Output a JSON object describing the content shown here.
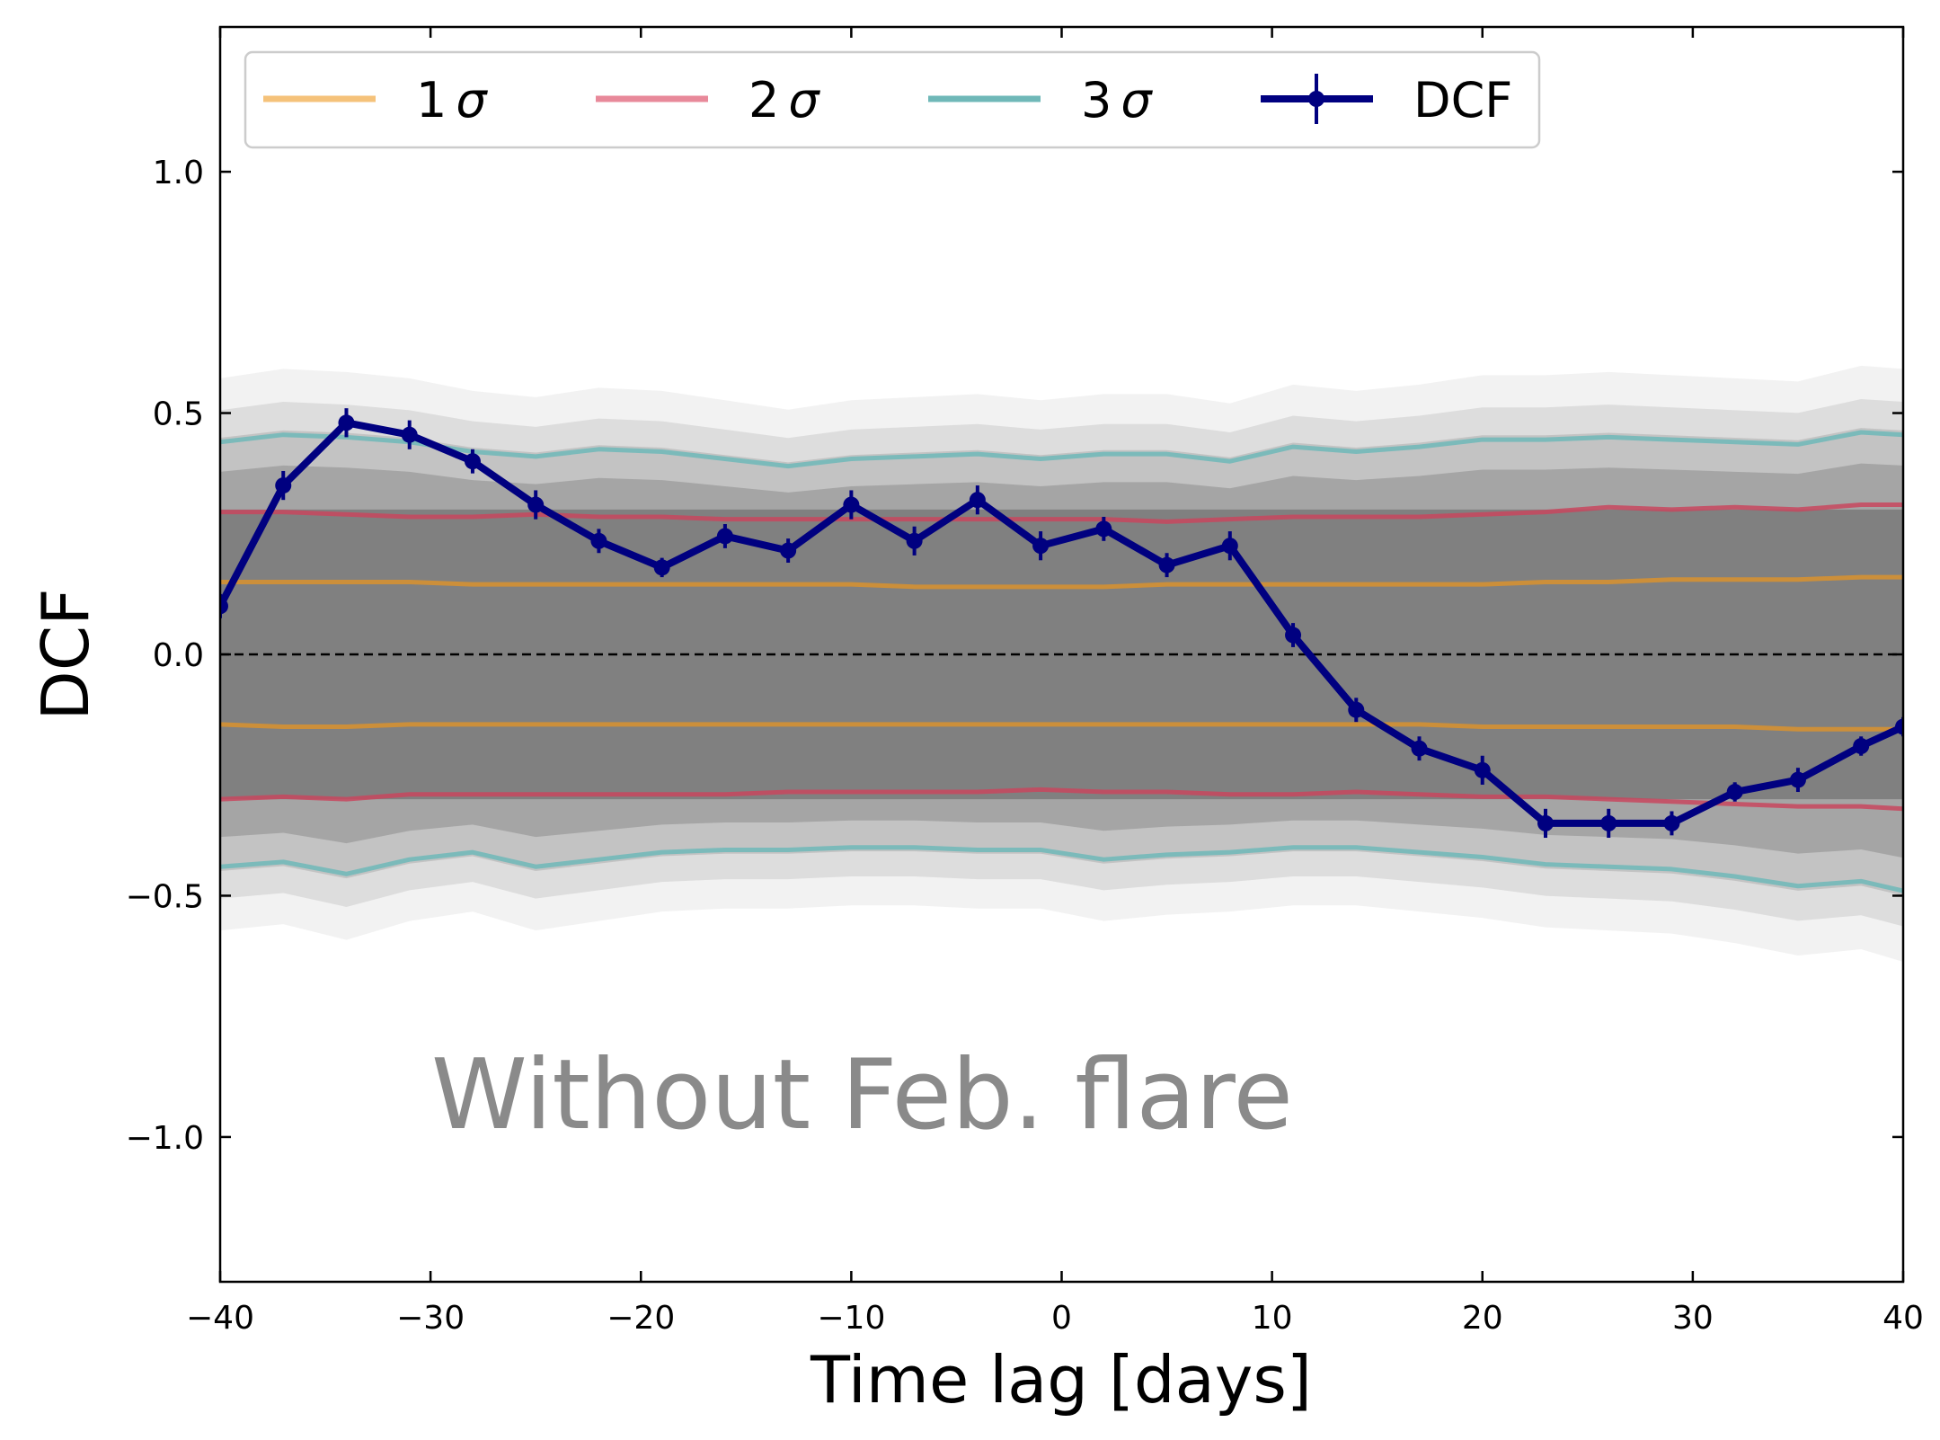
{
  "chart_data": {
    "type": "line",
    "title": "",
    "xlabel": "Time lag [days]",
    "ylabel": "DCF",
    "xlim": [
      -40,
      40
    ],
    "ylim": [
      -1.3,
      1.3
    ],
    "x_ticks": [
      -40,
      -30,
      -20,
      -10,
      0,
      10,
      20,
      30,
      40
    ],
    "x_tick_labels": [
      "−40",
      "−30",
      "−20",
      "−10",
      "0",
      "10",
      "20",
      "30",
      "40"
    ],
    "y_ticks": [
      -1.0,
      -0.5,
      0.0,
      0.5,
      1.0
    ],
    "y_tick_labels": [
      "−1.0",
      "−0.5",
      "0.0",
      "0.5",
      "1.0"
    ],
    "grid": false,
    "legend_position": "top",
    "annotation": "Without Feb. flare",
    "reference_line": {
      "y": 0.0,
      "style": "dashed",
      "color": "#000000"
    },
    "simulation_band": {
      "description": "simulated DCF curves",
      "core_lower": -0.3,
      "core_upper": 0.3,
      "color": "#808080"
    },
    "x": [
      -40,
      -37,
      -34,
      -31,
      -28,
      -25,
      -22,
      -19,
      -16,
      -13,
      -10,
      -7,
      -4,
      -1,
      2,
      5,
      8,
      11,
      14,
      17,
      20,
      23,
      26,
      29,
      32,
      35,
      38,
      40
    ],
    "series": [
      {
        "name": "1σ",
        "label_num": "1",
        "label_sym": "σ",
        "color": "#f5c27a",
        "band_color": "#d9922e",
        "upper": [
          0.15,
          0.15,
          0.15,
          0.15,
          0.145,
          0.145,
          0.145,
          0.145,
          0.145,
          0.145,
          0.145,
          0.14,
          0.14,
          0.14,
          0.14,
          0.145,
          0.145,
          0.145,
          0.145,
          0.145,
          0.145,
          0.15,
          0.15,
          0.155,
          0.155,
          0.155,
          0.16,
          0.16
        ],
        "lower": [
          -0.145,
          -0.15,
          -0.15,
          -0.145,
          -0.145,
          -0.145,
          -0.145,
          -0.145,
          -0.145,
          -0.145,
          -0.145,
          -0.145,
          -0.145,
          -0.145,
          -0.145,
          -0.145,
          -0.145,
          -0.145,
          -0.145,
          -0.145,
          -0.15,
          -0.15,
          -0.15,
          -0.15,
          -0.15,
          -0.155,
          -0.155,
          -0.155
        ]
      },
      {
        "name": "2σ",
        "label_num": "2",
        "label_sym": "σ",
        "color": "#e8899a",
        "band_color": "#c8465e",
        "upper": [
          0.295,
          0.295,
          0.29,
          0.285,
          0.285,
          0.29,
          0.285,
          0.285,
          0.28,
          0.28,
          0.28,
          0.28,
          0.28,
          0.28,
          0.28,
          0.275,
          0.28,
          0.285,
          0.285,
          0.285,
          0.29,
          0.295,
          0.305,
          0.3,
          0.305,
          0.3,
          0.31,
          0.31
        ],
        "lower": [
          -0.3,
          -0.295,
          -0.3,
          -0.29,
          -0.29,
          -0.29,
          -0.29,
          -0.29,
          -0.29,
          -0.285,
          -0.285,
          -0.285,
          -0.285,
          -0.28,
          -0.285,
          -0.285,
          -0.29,
          -0.29,
          -0.285,
          -0.29,
          -0.295,
          -0.295,
          -0.3,
          -0.305,
          -0.31,
          -0.315,
          -0.315,
          -0.32
        ]
      },
      {
        "name": "3σ",
        "label_num": "3",
        "label_sym": "σ",
        "color": "#6fb8b8",
        "band_color": "#6fb8b8",
        "upper": [
          0.44,
          0.455,
          0.45,
          0.44,
          0.42,
          0.41,
          0.425,
          0.42,
          0.405,
          0.39,
          0.405,
          0.41,
          0.415,
          0.405,
          0.415,
          0.415,
          0.4,
          0.43,
          0.42,
          0.43,
          0.445,
          0.445,
          0.45,
          0.445,
          0.44,
          0.435,
          0.46,
          0.455
        ],
        "lower": [
          -0.44,
          -0.43,
          -0.455,
          -0.425,
          -0.41,
          -0.44,
          -0.425,
          -0.41,
          -0.405,
          -0.405,
          -0.4,
          -0.4,
          -0.405,
          -0.405,
          -0.425,
          -0.415,
          -0.41,
          -0.4,
          -0.4,
          -0.41,
          -0.42,
          -0.435,
          -0.44,
          -0.445,
          -0.46,
          -0.48,
          -0.47,
          -0.49
        ]
      },
      {
        "name": "DCF",
        "color": "#000080",
        "x": [
          -40,
          -37,
          -34,
          -31,
          -28,
          -25,
          -22,
          -19,
          -16,
          -13,
          -10,
          -7,
          -4,
          -1,
          2,
          5,
          8,
          11,
          14,
          17,
          20,
          23,
          26,
          29,
          32,
          35,
          38,
          40
        ],
        "values": [
          0.1,
          0.35,
          0.48,
          0.455,
          0.4,
          0.31,
          0.235,
          0.18,
          0.245,
          0.215,
          0.31,
          0.235,
          0.32,
          0.225,
          0.26,
          0.185,
          0.225,
          0.04,
          -0.115,
          -0.195,
          -0.24,
          -0.35,
          -0.35,
          -0.35,
          -0.285,
          -0.26,
          -0.19,
          -0.15
        ],
        "errors": [
          0.025,
          0.03,
          0.03,
          0.03,
          0.025,
          0.03,
          0.025,
          0.02,
          0.025,
          0.025,
          0.03,
          0.03,
          0.03,
          0.03,
          0.025,
          0.025,
          0.03,
          0.025,
          0.025,
          0.025,
          0.03,
          0.03,
          0.03,
          0.025,
          0.02,
          0.025,
          0.02,
          0.02
        ]
      }
    ]
  }
}
